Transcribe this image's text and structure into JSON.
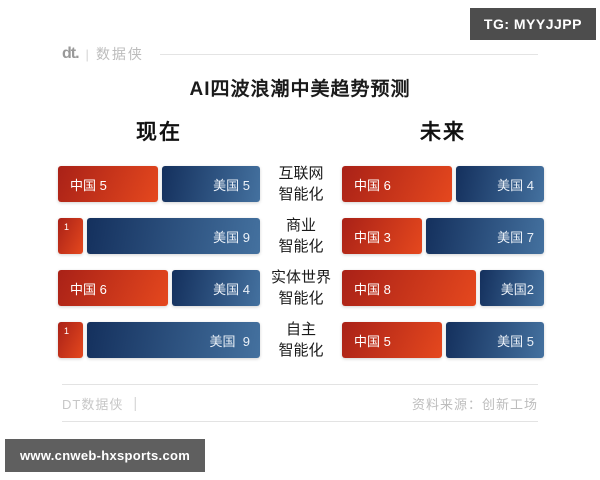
{
  "badge_top": "TG: MYYJJPP",
  "watermark": "www.cnweb-hxsports.com",
  "header": {
    "logo_mark": "dt.",
    "divider": "|",
    "logo_text": "数据侠"
  },
  "title": "AI四波浪潮中美趋势预测",
  "sections": {
    "now": "现在",
    "future": "未来"
  },
  "footer": {
    "left": "DT数据侠",
    "divider": "|",
    "source": "资料来源：创新工场"
  },
  "colors": {
    "china_red_dark": "#a92117",
    "china_red_bright": "#e5481e",
    "us_blue_dark": "#14305d",
    "us_blue_light": "#44719f",
    "badge_gray": "#4d4d4d",
    "watermark_gray": "#5f5f5f"
  },
  "chart_data": {
    "type": "bar",
    "title": "AI四波浪潮中美趋势预测",
    "categories": [
      "互联网智能化",
      "商业智能化",
      "实体世界智能化",
      "自主智能化"
    ],
    "series": [
      {
        "name": "现在-中国",
        "values": [
          5,
          1,
          6,
          1
        ]
      },
      {
        "name": "现在-美国",
        "values": [
          5,
          9,
          4,
          9
        ]
      },
      {
        "name": "未来-中国",
        "values": [
          6,
          3,
          8,
          5
        ]
      },
      {
        "name": "未来-美国",
        "values": [
          4,
          7,
          2,
          5
        ]
      }
    ],
    "scale_total": 10,
    "legend_position": "in-bar",
    "grid": false
  },
  "rows": [
    {
      "label1": "互联网",
      "label2": "智能化",
      "now": {
        "cn_value": 5,
        "us_value": 5,
        "cn_label": "中国 5",
        "us_label": "美国 5"
      },
      "future": {
        "cn_value": 6,
        "us_value": 4,
        "cn_label": "中国 6",
        "us_label": "美国 4"
      }
    },
    {
      "label1": "商业",
      "label2": "智能化",
      "now": {
        "cn_value": 1,
        "us_value": 9,
        "cn_label": "1",
        "us_label": "美国 9"
      },
      "future": {
        "cn_value": 3,
        "us_value": 7,
        "cn_label": "中国 3",
        "us_label": "美国 7"
      }
    },
    {
      "label1": "实体世界",
      "label2": "智能化",
      "now": {
        "cn_value": 6,
        "us_value": 4,
        "cn_label": "中国 6",
        "us_label": "美国 4"
      },
      "future": {
        "cn_value": 8,
        "us_value": 2,
        "cn_label": "中国 8",
        "us_label": "美国2"
      }
    },
    {
      "label1": "自主",
      "label2": "智能化",
      "now": {
        "cn_value": 1,
        "us_value": 9,
        "cn_label": "1",
        "us_label": "美国  9"
      },
      "future": {
        "cn_value": 5,
        "us_value": 5,
        "cn_label": "中国 5",
        "us_label": "美国 5"
      }
    }
  ]
}
